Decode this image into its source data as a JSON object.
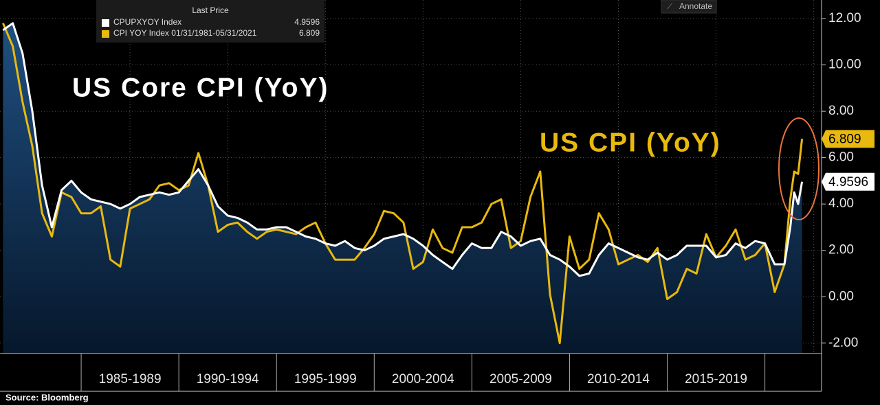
{
  "chart_data": {
    "type": "line",
    "legend_header": "Last Price",
    "annotations": [
      "US Core CPI (YoY)",
      "US CPI (YoY)"
    ],
    "source": "Source: Bloomberg",
    "button": "Annotate",
    "x": [
      1981.0,
      1981.5,
      1982.0,
      1982.5,
      1983.0,
      1983.5,
      1984.0,
      1984.5,
      1985.0,
      1985.5,
      1986.0,
      1986.5,
      1987.0,
      1987.5,
      1988.0,
      1988.5,
      1989.0,
      1989.5,
      1990.0,
      1990.5,
      1991.0,
      1991.5,
      1992.0,
      1992.5,
      1993.0,
      1993.5,
      1994.0,
      1994.5,
      1995.0,
      1995.5,
      1996.0,
      1996.5,
      1997.0,
      1997.5,
      1998.0,
      1998.5,
      1999.0,
      1999.5,
      2000.0,
      2000.5,
      2001.0,
      2001.5,
      2002.0,
      2002.5,
      2003.0,
      2003.5,
      2004.0,
      2004.5,
      2005.0,
      2005.5,
      2006.0,
      2006.5,
      2007.0,
      2007.5,
      2008.0,
      2008.5,
      2009.0,
      2009.5,
      2010.0,
      2010.5,
      2011.0,
      2011.5,
      2012.0,
      2012.5,
      2013.0,
      2013.5,
      2014.0,
      2014.5,
      2015.0,
      2015.5,
      2016.0,
      2016.5,
      2017.0,
      2017.5,
      2018.0,
      2018.5,
      2019.0,
      2019.5,
      2020.0,
      2020.5,
      2021.0,
      2021.3,
      2021.5,
      2021.7,
      2021.9
    ],
    "series": [
      {
        "name": "CPUPXYOY Index",
        "color": "#ffffff",
        "area": true,
        "values": [
          11.5,
          11.8,
          10.5,
          8.0,
          4.8,
          3.0,
          4.6,
          5.0,
          4.5,
          4.2,
          4.1,
          4.0,
          3.8,
          4.0,
          4.3,
          4.4,
          4.5,
          4.4,
          4.5,
          5.0,
          5.5,
          4.8,
          3.9,
          3.5,
          3.4,
          3.2,
          2.9,
          2.9,
          3.0,
          3.0,
          2.8,
          2.6,
          2.5,
          2.3,
          2.2,
          2.4,
          2.1,
          2.0,
          2.2,
          2.5,
          2.6,
          2.7,
          2.5,
          2.2,
          1.8,
          1.5,
          1.2,
          1.8,
          2.3,
          2.1,
          2.1,
          2.8,
          2.6,
          2.2,
          2.4,
          2.5,
          1.8,
          1.6,
          1.3,
          0.9,
          1.0,
          1.8,
          2.3,
          2.1,
          1.9,
          1.7,
          1.6,
          1.9,
          1.6,
          1.8,
          2.2,
          2.2,
          2.2,
          1.7,
          1.8,
          2.3,
          2.1,
          2.4,
          2.3,
          1.4,
          1.4,
          3.0,
          4.5,
          4.0,
          4.9596
        ]
      },
      {
        "name": "CPI YOY Index 01/31/1981-05/31/2021",
        "color": "#e8b90e",
        "area": false,
        "values": [
          11.8,
          10.8,
          8.4,
          6.5,
          3.6,
          2.6,
          4.5,
          4.3,
          3.6,
          3.6,
          3.9,
          1.6,
          1.3,
          3.8,
          4.0,
          4.2,
          4.8,
          4.9,
          4.6,
          4.8,
          6.2,
          4.8,
          2.8,
          3.1,
          3.2,
          2.8,
          2.5,
          2.8,
          2.9,
          2.8,
          2.7,
          3.0,
          3.2,
          2.3,
          1.6,
          1.6,
          1.6,
          2.1,
          2.7,
          3.7,
          3.6,
          3.2,
          1.2,
          1.5,
          2.9,
          2.1,
          1.9,
          3.0,
          3.0,
          3.2,
          4.0,
          4.2,
          2.1,
          2.4,
          4.3,
          5.4,
          0.1,
          -2.0,
          2.6,
          1.2,
          1.6,
          3.6,
          2.9,
          1.4,
          1.6,
          1.8,
          1.5,
          2.1,
          -0.1,
          0.2,
          1.2,
          1.0,
          2.7,
          1.7,
          2.2,
          2.9,
          1.6,
          1.8,
          2.3,
          0.2,
          1.4,
          4.2,
          5.4,
          5.3,
          6.809
        ]
      }
    ],
    "xlim": [
      1981,
      2022.9
    ],
    "xticks": [
      {
        "value": 1985,
        "label": "1985-1989"
      },
      {
        "value": 1990,
        "label": "1990-1994"
      },
      {
        "value": 1995,
        "label": "1995-1999"
      },
      {
        "value": 2000,
        "label": "2000-2004"
      },
      {
        "value": 2005,
        "label": "2005-2009"
      },
      {
        "value": 2010,
        "label": "2010-2014"
      },
      {
        "value": 2015,
        "label": "2015-2019"
      },
      {
        "value": 2020,
        "label": ""
      }
    ],
    "ylim": [
      -2.45,
      12.8
    ],
    "yticks": [
      {
        "value": -2,
        "label": "-2.00"
      },
      {
        "value": 0,
        "label": "0.00"
      },
      {
        "value": 2,
        "label": "2.00"
      },
      {
        "value": 4,
        "label": "4.00"
      },
      {
        "value": 6,
        "label": "6.00"
      },
      {
        "value": 8,
        "label": "8.00"
      },
      {
        "value": 10,
        "label": "10.00"
      },
      {
        "value": 12,
        "label": "12.00"
      }
    ],
    "grid": true
  }
}
